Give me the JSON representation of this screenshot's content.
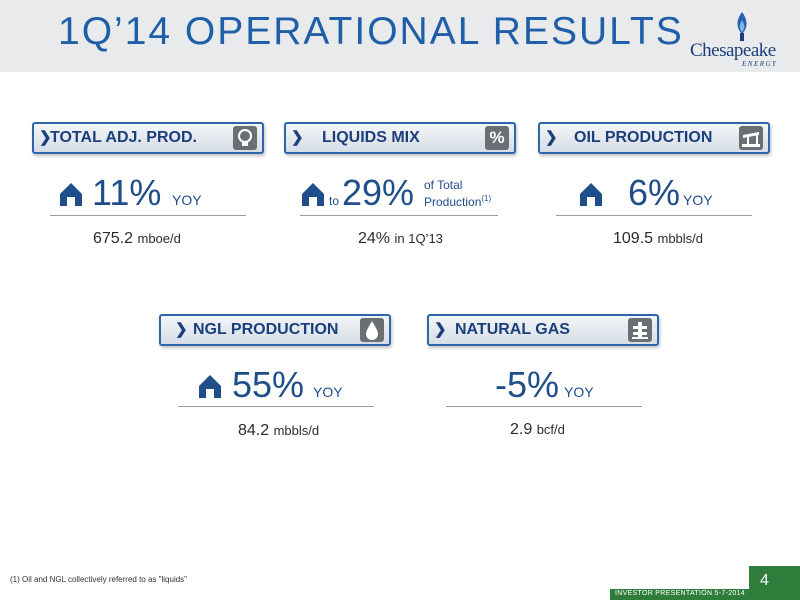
{
  "header": {
    "title": "1Q’14 OPERATIONAL RESULTS",
    "logo_text": "Chesapeake",
    "logo_sub": "ENERGY"
  },
  "metrics": {
    "total": {
      "label": "TOTAL ADJ. PROD.",
      "icon": "lightbulb-icon",
      "value": "11%",
      "suffix": "YOY",
      "detail_value": "675.2",
      "detail_unit": "mboe/d"
    },
    "liquids": {
      "label": "LIQUIDS MIX",
      "icon": "percent-icon",
      "icon_glyph": "%",
      "prefix": "to",
      "value": "29%",
      "suffix_line1": "of Total",
      "suffix_line2": "Production",
      "suffix_note": "(1)",
      "detail_value": "24%",
      "detail_unit": "in 1Q’13"
    },
    "oil": {
      "label": "OIL PRODUCTION",
      "icon": "oil-pump-icon",
      "value": "6%",
      "suffix": "YOY",
      "detail_value": "109.5",
      "detail_unit": "mbbls/d"
    },
    "ngl": {
      "label": "NGL PRODUCTION",
      "icon": "droplet-icon",
      "value": "55%",
      "suffix": "YOY",
      "detail_value": "84.2",
      "detail_unit": "mbbls/d"
    },
    "gas": {
      "label": "NATURAL GAS",
      "icon": "gas-well-icon",
      "value": "-5%",
      "suffix": "YOY",
      "detail_value": "2.9",
      "detail_unit": "bcf/d"
    }
  },
  "footer": {
    "footnote": "(1) Oil and NGL collectively referred to as \"liquids\"",
    "presentation": "INVESTOR PRESENTATION 5-7-2014",
    "page": "4"
  },
  "colors": {
    "title_blue": "#1f5fa8",
    "text_blue": "#1f4e8a",
    "green": "#2e7d3a",
    "icon_gray": "#6a6f74"
  }
}
